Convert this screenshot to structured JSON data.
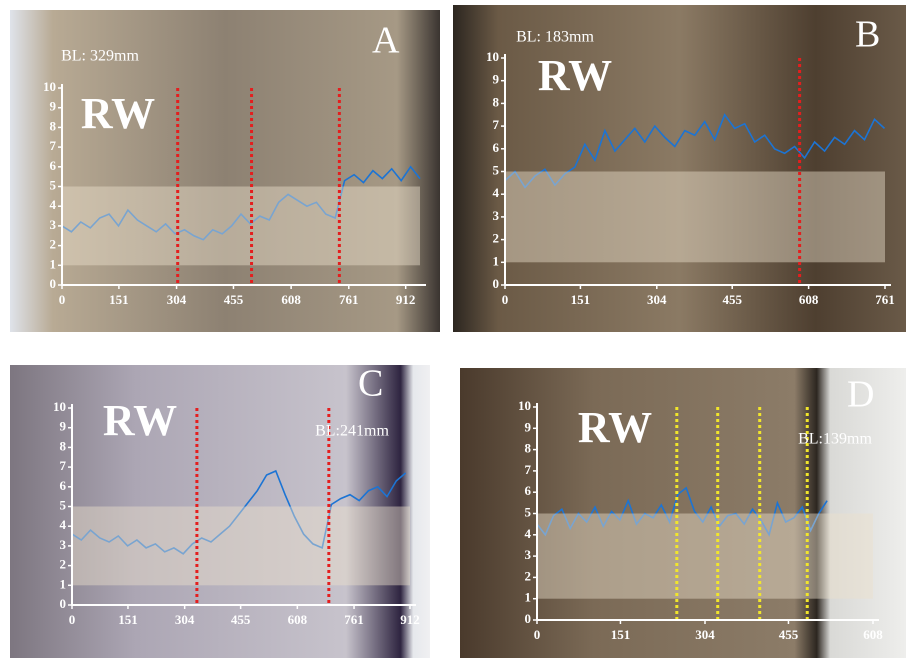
{
  "chart_data": [
    {
      "type": "line",
      "panel": "A",
      "annotations": [
        "RW",
        "BL: 329mm"
      ],
      "xlim": [
        0,
        950
      ],
      "xticks": [
        0,
        151,
        304,
        455,
        608,
        761,
        912
      ],
      "ylim": [
        0,
        10
      ],
      "yticks": [
        0,
        1,
        2,
        3,
        4,
        5,
        6,
        7,
        8,
        9,
        10
      ],
      "band": [
        1,
        5
      ],
      "markers": [
        307,
        503,
        736
      ],
      "marker_color": "#e41e1e",
      "series": [
        {
          "color": "#1c74d4",
          "x": [
            0,
            25,
            50,
            75,
            100,
            125,
            150,
            175,
            200,
            225,
            250,
            275,
            300,
            325,
            350,
            375,
            400,
            425,
            450,
            475,
            500,
            525,
            550,
            575,
            600,
            625,
            650,
            675,
            700,
            725,
            750,
            775,
            800,
            825,
            850,
            875,
            900,
            925,
            950
          ],
          "values": [
            3.0,
            2.7,
            3.2,
            2.9,
            3.4,
            3.6,
            3.0,
            3.8,
            3.3,
            3.0,
            2.7,
            3.1,
            2.6,
            2.8,
            2.5,
            2.3,
            2.8,
            2.6,
            3.0,
            3.6,
            3.1,
            3.5,
            3.3,
            4.2,
            4.6,
            4.3,
            4.0,
            4.2,
            3.6,
            3.4,
            5.3,
            5.6,
            5.2,
            5.8,
            5.4,
            5.9,
            5.3,
            6.0,
            5.4
          ]
        }
      ]
    },
    {
      "type": "line",
      "panel": "B",
      "annotations": [
        "RW",
        "BL: 183mm"
      ],
      "xlim": [
        0,
        761
      ],
      "xticks": [
        0,
        151,
        304,
        455,
        608,
        761
      ],
      "ylim": [
        0,
        10
      ],
      "yticks": [
        0,
        1,
        2,
        3,
        4,
        5,
        6,
        7,
        8,
        9,
        10
      ],
      "band": [
        1,
        5
      ],
      "markers": [
        590
      ],
      "marker_color": "#e41e1e",
      "series": [
        {
          "color": "#1c74d4",
          "x": [
            0,
            20,
            40,
            60,
            80,
            100,
            120,
            140,
            160,
            180,
            200,
            220,
            240,
            260,
            280,
            300,
            320,
            340,
            360,
            380,
            400,
            420,
            440,
            460,
            480,
            500,
            520,
            540,
            560,
            580,
            600,
            620,
            640,
            660,
            680,
            700,
            720,
            740,
            760
          ],
          "values": [
            4.6,
            5.0,
            4.3,
            4.8,
            5.1,
            4.4,
            4.9,
            5.2,
            6.2,
            5.5,
            6.8,
            5.9,
            6.4,
            6.9,
            6.3,
            7.0,
            6.5,
            6.1,
            6.8,
            6.6,
            7.2,
            6.4,
            7.5,
            6.9,
            7.1,
            6.3,
            6.6,
            6.0,
            5.8,
            6.1,
            5.6,
            6.3,
            5.9,
            6.5,
            6.2,
            6.8,
            6.4,
            7.3,
            6.9
          ]
        }
      ]
    },
    {
      "type": "line",
      "panel": "C",
      "annotations": [
        "RW",
        "BL:241mm"
      ],
      "xlim": [
        0,
        912
      ],
      "xticks": [
        0,
        151,
        304,
        455,
        608,
        761,
        912
      ],
      "ylim": [
        0,
        10
      ],
      "yticks": [
        0,
        1,
        2,
        3,
        4,
        5,
        6,
        7,
        8,
        9,
        10
      ],
      "band": [
        1,
        5
      ],
      "markers": [
        337,
        693
      ],
      "marker_color": "#e41e1e",
      "series": [
        {
          "color": "#1c74d4",
          "x": [
            0,
            25,
            50,
            75,
            100,
            125,
            150,
            175,
            200,
            225,
            250,
            275,
            300,
            325,
            350,
            375,
            400,
            425,
            450,
            475,
            500,
            525,
            550,
            575,
            600,
            625,
            650,
            675,
            700,
            725,
            750,
            775,
            800,
            825,
            850,
            875,
            900
          ],
          "values": [
            3.6,
            3.3,
            3.8,
            3.4,
            3.2,
            3.5,
            3.0,
            3.3,
            2.9,
            3.1,
            2.7,
            2.9,
            2.6,
            3.1,
            3.4,
            3.2,
            3.6,
            4.0,
            4.6,
            5.2,
            5.8,
            6.6,
            6.8,
            5.6,
            4.5,
            3.6,
            3.1,
            2.9,
            5.1,
            5.4,
            5.6,
            5.3,
            5.8,
            6.0,
            5.5,
            6.3,
            6.7
          ]
        }
      ]
    },
    {
      "type": "line",
      "panel": "D",
      "annotations": [
        "RW",
        "BL:139mm"
      ],
      "xlim": [
        0,
        608
      ],
      "xticks": [
        0,
        151,
        304,
        455,
        608
      ],
      "ylim": [
        0,
        10
      ],
      "yticks": [
        0,
        1,
        2,
        3,
        4,
        5,
        6,
        7,
        8,
        9,
        10
      ],
      "band": [
        1,
        5
      ],
      "markers": [
        253,
        327,
        403,
        489
      ],
      "marker_color": "#f2e62a",
      "series": [
        {
          "color": "#1c74d4",
          "x": [
            0,
            15,
            30,
            45,
            60,
            75,
            90,
            105,
            120,
            135,
            150,
            165,
            180,
            195,
            210,
            225,
            240,
            255,
            270,
            285,
            300,
            315,
            330,
            345,
            360,
            375,
            390,
            405,
            420,
            435,
            450,
            465,
            480,
            495,
            510,
            525
          ],
          "values": [
            4.5,
            4.0,
            4.9,
            5.2,
            4.3,
            5.0,
            4.6,
            5.3,
            4.4,
            5.1,
            4.7,
            5.6,
            4.5,
            5.0,
            4.8,
            5.4,
            4.6,
            5.9,
            6.2,
            5.1,
            4.6,
            5.3,
            4.4,
            4.9,
            5.0,
            4.5,
            5.2,
            4.7,
            4.0,
            5.5,
            4.6,
            4.8,
            5.3,
            4.2,
            5.0,
            5.6
          ]
        }
      ]
    }
  ]
}
